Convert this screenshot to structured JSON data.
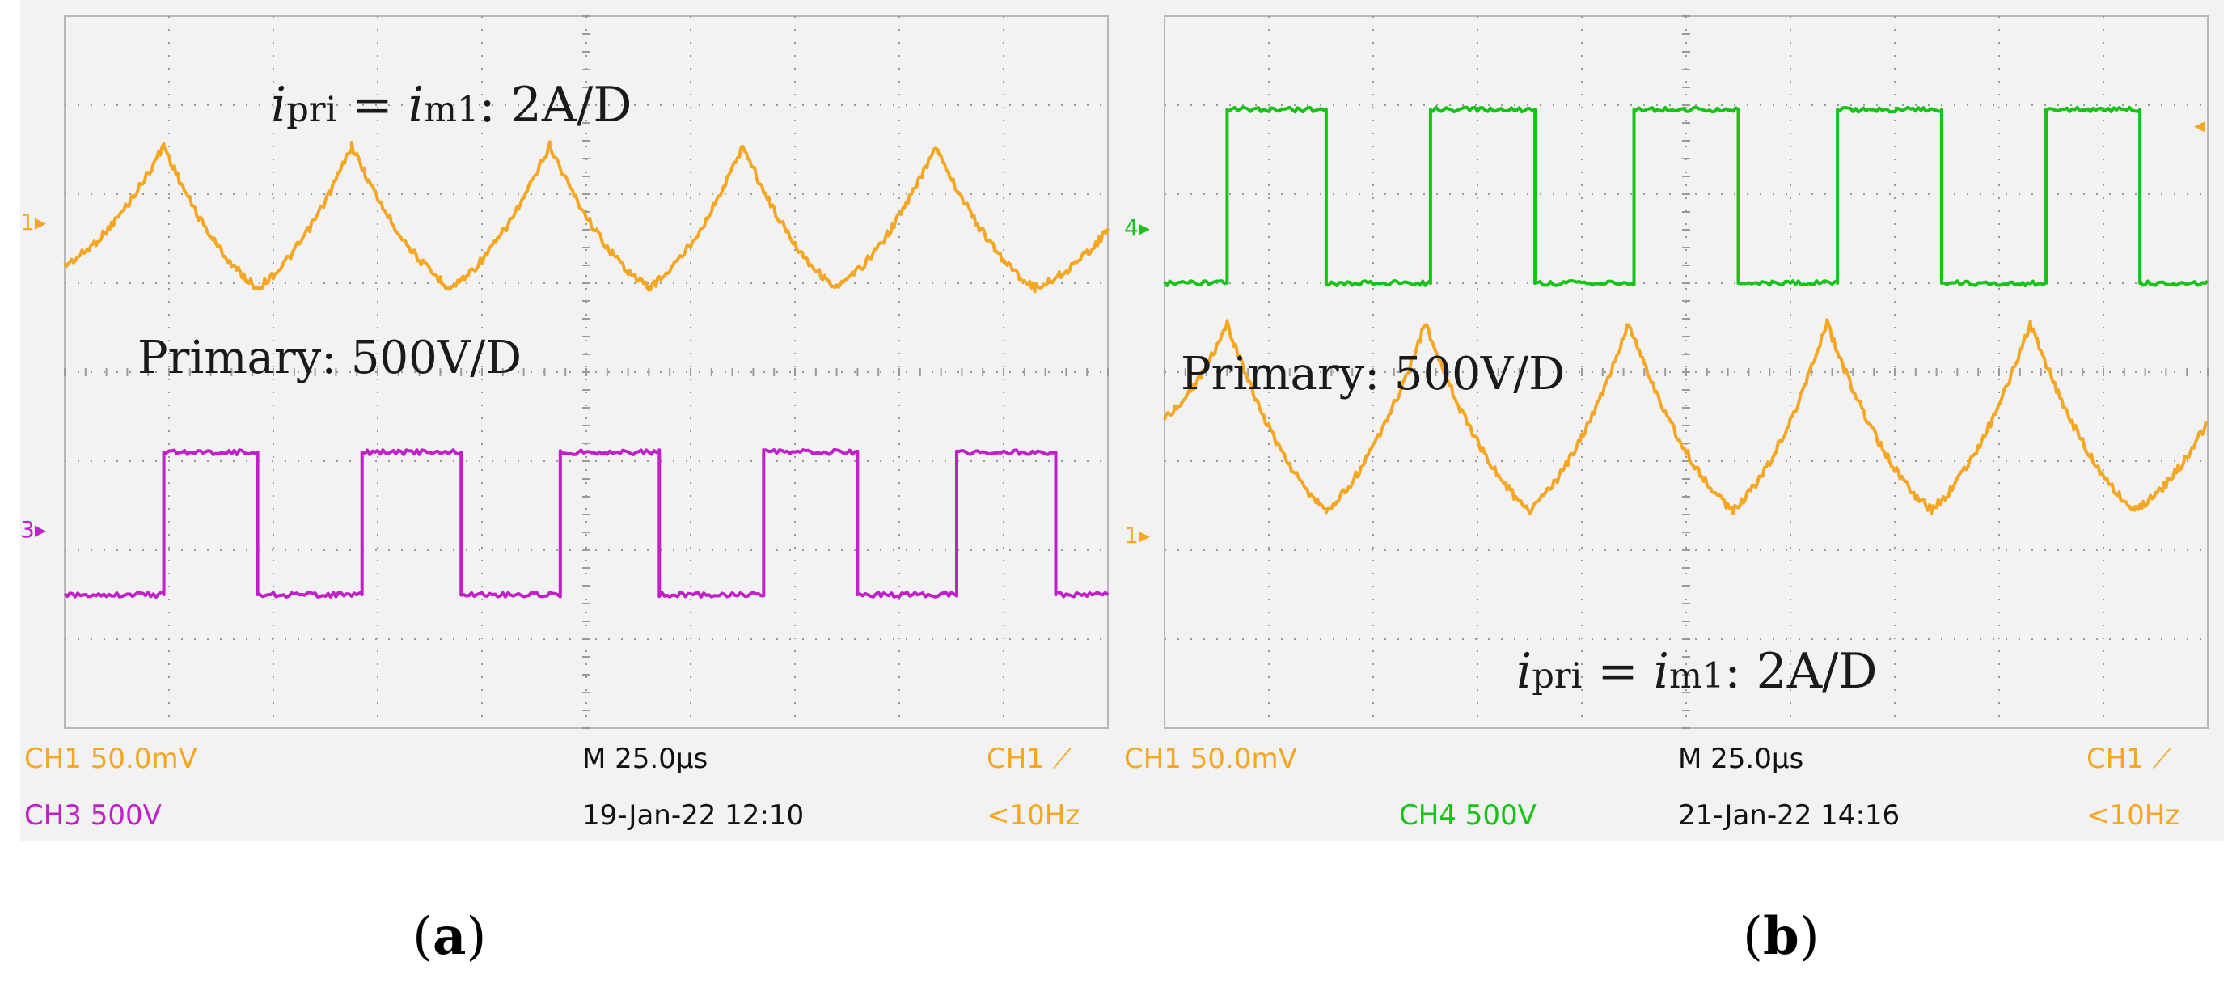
{
  "panels": [
    {
      "id": "a",
      "caption": "a",
      "label_top": {
        "i1": "i",
        "s1": "pri",
        "eq": " = ",
        "i2": "i",
        "s2": "m1",
        "rest": ": 2A/D"
      },
      "label_mid": "Primary: 500V/D",
      "status": {
        "ch_a": "CH1  50.0mV",
        "ch_b": "CH3  500V",
        "timebase": "M 25.0µs",
        "date": "19-Jan-22 12:10",
        "trig": "CH1 ⟋",
        "freq": "<10Hz"
      },
      "markers": {
        "orange": "1",
        "square": "3"
      }
    },
    {
      "id": "b",
      "caption": "b",
      "label_mid": "Primary: 500V/D",
      "label_bottom": {
        "i1": "i",
        "s1": "pri",
        "eq": " = ",
        "i2": "i",
        "s2": "m1",
        "rest": ": 2A/D"
      },
      "status": {
        "ch_a": "CH1  50.0mV",
        "ch_b": "CH4  500V",
        "timebase": "M 25.0µs",
        "date": "21-Jan-22 14:16",
        "trig": "CH1 ⟋",
        "freq": "<10Hz"
      },
      "markers": {
        "square": "4",
        "orange": "1"
      }
    }
  ],
  "colors": {
    "ch1": "#f5a623",
    "ch3": "#c020c8",
    "ch4": "#19c219",
    "grid": "#9a9a9a",
    "screen": "#f2f2f2"
  },
  "chart_data": [
    {
      "type": "line",
      "panel": "a",
      "x_unit": "divisions (25.0 µs/div)",
      "xlim": [
        0,
        10
      ],
      "ylim": [
        -4,
        4
      ],
      "grid": true,
      "series": [
        {
          "name": "CH1",
          "color": "#f5a623",
          "waveform": "cusped triangle",
          "x": [
            0.0,
            0.95,
            1.85,
            2.75,
            3.7,
            4.65,
            5.6,
            6.5,
            7.4,
            8.35,
            9.3,
            10.0
          ],
          "y": [
            1.2,
            2.55,
            0.95,
            2.55,
            0.95,
            2.55,
            0.95,
            2.55,
            0.95,
            2.55,
            0.95,
            1.6
          ]
        },
        {
          "name": "CH3",
          "color": "#c020c8",
          "waveform": "square",
          "x": [
            0.0,
            0.95,
            0.95,
            1.85,
            1.85,
            2.85,
            2.85,
            3.8,
            3.8,
            4.75,
            4.75,
            5.7,
            5.7,
            6.7,
            6.7,
            7.6,
            7.6,
            8.55,
            8.55,
            9.5,
            9.5,
            10.0
          ],
          "y": [
            -2.5,
            -2.5,
            -0.9,
            -0.9,
            -2.5,
            -2.5,
            -0.9,
            -0.9,
            -2.5,
            -2.5,
            -0.9,
            -0.9,
            -2.5,
            -2.5,
            -0.9,
            -0.9,
            -2.5,
            -2.5,
            -0.9,
            -0.9,
            -2.5,
            -2.5
          ]
        }
      ]
    },
    {
      "type": "line",
      "panel": "b",
      "x_unit": "divisions (25.0 µs/div)",
      "xlim": [
        0,
        10
      ],
      "ylim": [
        -4,
        4
      ],
      "grid": true,
      "series": [
        {
          "name": "CH4",
          "color": "#19c219",
          "waveform": "square",
          "x": [
            0.0,
            0.6,
            0.6,
            1.55,
            1.55,
            2.55,
            2.55,
            3.55,
            3.55,
            4.5,
            4.5,
            5.5,
            5.5,
            6.45,
            6.45,
            7.45,
            7.45,
            8.45,
            8.45,
            9.35,
            9.35,
            10.0
          ],
          "y": [
            1.0,
            1.0,
            2.95,
            2.95,
            1.0,
            1.0,
            2.95,
            2.95,
            1.0,
            1.0,
            2.95,
            2.95,
            1.0,
            1.0,
            2.95,
            2.95,
            1.0,
            1.0,
            2.95,
            2.95,
            1.0,
            1.0
          ]
        },
        {
          "name": "CH1",
          "color": "#f5a623",
          "waveform": "cusped triangle",
          "x": [
            0.0,
            0.6,
            1.55,
            2.5,
            3.5,
            4.45,
            5.45,
            6.35,
            7.35,
            8.3,
            9.3,
            10.0
          ],
          "y": [
            -0.5,
            0.55,
            -1.55,
            0.55,
            -1.55,
            0.55,
            -1.55,
            0.55,
            -1.55,
            0.55,
            -1.55,
            -0.55
          ]
        }
      ]
    }
  ]
}
